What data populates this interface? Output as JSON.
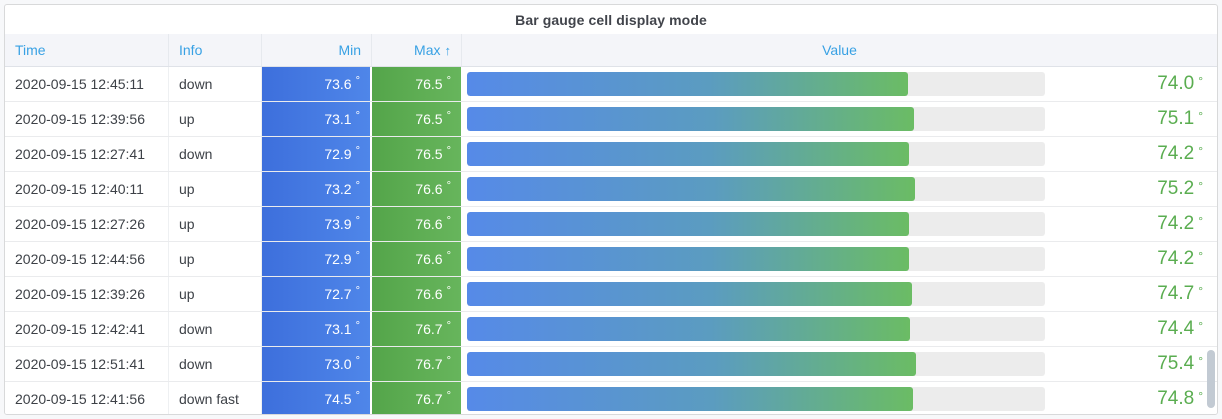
{
  "panel": {
    "title": "Bar gauge cell display mode"
  },
  "table": {
    "columns": [
      {
        "label": "Time"
      },
      {
        "label": "Info"
      },
      {
        "label": "Min"
      },
      {
        "label": "Max",
        "sort": "ascending",
        "sort_icon": "↑"
      },
      {
        "label": "Value"
      }
    ],
    "unit": "°",
    "rows": [
      {
        "time": "2020-09-15 12:45:11",
        "info": "down",
        "min": "73.6",
        "max": "76.5",
        "value": "74.0"
      },
      {
        "time": "2020-09-15 12:39:56",
        "info": "up",
        "min": "73.1",
        "max": "76.5",
        "value": "75.1"
      },
      {
        "time": "2020-09-15 12:27:41",
        "info": "down",
        "min": "72.9",
        "max": "76.5",
        "value": "74.2"
      },
      {
        "time": "2020-09-15 12:40:11",
        "info": "up",
        "min": "73.2",
        "max": "76.6",
        "value": "75.2"
      },
      {
        "time": "2020-09-15 12:27:26",
        "info": "up",
        "min": "73.9",
        "max": "76.6",
        "value": "74.2"
      },
      {
        "time": "2020-09-15 12:44:56",
        "info": "up",
        "min": "72.9",
        "max": "76.6",
        "value": "74.2"
      },
      {
        "time": "2020-09-15 12:39:26",
        "info": "up",
        "min": "72.7",
        "max": "76.6",
        "value": "74.7"
      },
      {
        "time": "2020-09-15 12:42:41",
        "info": "down",
        "min": "73.1",
        "max": "76.7",
        "value": "74.4"
      },
      {
        "time": "2020-09-15 12:51:41",
        "info": "down",
        "min": "73.0",
        "max": "76.7",
        "value": "75.4"
      },
      {
        "time": "2020-09-15 12:41:56",
        "info": "down fast",
        "min": "74.5",
        "max": "76.7",
        "value": "74.8"
      }
    ]
  },
  "chart_data": {
    "type": "table",
    "title": "Bar gauge cell display mode",
    "columns": [
      "Time",
      "Info",
      "Min",
      "Max",
      "Value"
    ],
    "unit": "°",
    "sort": {
      "column": "Max",
      "direction": "ascending"
    },
    "gauge": {
      "min": 0,
      "max": 97,
      "mode": "gradient",
      "track_color": "#ececec"
    },
    "rows": [
      [
        "2020-09-15 12:45:11",
        "down",
        73.6,
        76.5,
        74.0
      ],
      [
        "2020-09-15 12:39:56",
        "up",
        73.1,
        76.5,
        75.1
      ],
      [
        "2020-09-15 12:27:41",
        "down",
        72.9,
        76.5,
        74.2
      ],
      [
        "2020-09-15 12:40:11",
        "up",
        73.2,
        76.6,
        75.2
      ],
      [
        "2020-09-15 12:27:26",
        "up",
        73.9,
        76.6,
        74.2
      ],
      [
        "2020-09-15 12:44:56",
        "up",
        72.9,
        76.6,
        74.2
      ],
      [
        "2020-09-15 12:39:26",
        "up",
        72.7,
        76.6,
        74.7
      ],
      [
        "2020-09-15 12:42:41",
        "down",
        73.1,
        76.7,
        74.4
      ],
      [
        "2020-09-15 12:51:41",
        "down",
        73.0,
        76.7,
        75.4
      ],
      [
        "2020-09-15 12:41:56",
        "down fast",
        74.5,
        76.7,
        74.8
      ]
    ]
  },
  "colors": {
    "header_text": "#38a1e4",
    "header_bg": "#f4f5f9",
    "title_text": "#41444b",
    "value_text": "#5aad50",
    "min_cell_gradient": [
      "#3d6fdc",
      "#4f86e9"
    ],
    "max_cell_gradient": [
      "#54a54a",
      "#67b55c"
    ],
    "gauge_gradient": [
      "#568ae8",
      "#5b9cc0",
      "#6bbc64"
    ],
    "gauge_track": "#ececec",
    "panel_border": "#d8d9da"
  }
}
